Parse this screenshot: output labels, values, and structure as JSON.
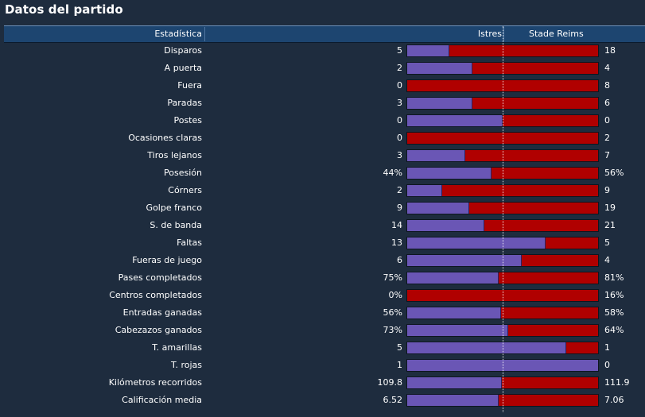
{
  "title": "Datos del partido",
  "columns": {
    "stat": "Estadística",
    "home": "Istres",
    "away": "Stade Reims"
  },
  "colors": {
    "home_bar": "#6a56b5",
    "away_bar": "#b00000",
    "header_bg": "#1d4570",
    "background": "#1e2c3e"
  },
  "rows": [
    {
      "label": "Disparos",
      "home": "5",
      "away": "18",
      "home_share": 0.22
    },
    {
      "label": "A puerta",
      "home": "2",
      "away": "4",
      "home_share": 0.34
    },
    {
      "label": "Fuera",
      "home": "0",
      "away": "8",
      "home_share": 0.0
    },
    {
      "label": "Paradas",
      "home": "3",
      "away": "6",
      "home_share": 0.34
    },
    {
      "label": "Postes",
      "home": "0",
      "away": "0",
      "home_share": 0.5
    },
    {
      "label": "Ocasiones claras",
      "home": "0",
      "away": "2",
      "home_share": 0.0
    },
    {
      "label": "Tiros lejanos",
      "home": "3",
      "away": "7",
      "home_share": 0.305
    },
    {
      "label": "Posesión",
      "home": "44%",
      "away": "56%",
      "home_share": 0.44
    },
    {
      "label": "Córners",
      "home": "2",
      "away": "9",
      "home_share": 0.185
    },
    {
      "label": "Golpe franco",
      "home": "9",
      "away": "19",
      "home_share": 0.325
    },
    {
      "label": "S. de banda",
      "home": "14",
      "away": "21",
      "home_share": 0.405
    },
    {
      "label": "Faltas",
      "home": "13",
      "away": "5",
      "home_share": 0.725
    },
    {
      "label": "Fueras de juego",
      "home": "6",
      "away": "4",
      "home_share": 0.6
    },
    {
      "label": "Pases completados",
      "home": "75%",
      "away": "81%",
      "home_share": 0.48
    },
    {
      "label": "Centros completados",
      "home": "0%",
      "away": "16%",
      "home_share": 0.0
    },
    {
      "label": "Entradas ganadas",
      "home": "56%",
      "away": "58%",
      "home_share": 0.49
    },
    {
      "label": "Cabezazos ganados",
      "home": "73%",
      "away": "64%",
      "home_share": 0.53
    },
    {
      "label": "T. amarillas",
      "home": "5",
      "away": "1",
      "home_share": 0.835
    },
    {
      "label": "T. rojas",
      "home": "1",
      "away": "0",
      "home_share": 1.0
    },
    {
      "label": "Kilómetros recorridos",
      "home": "109.8",
      "away": "111.9",
      "home_share": 0.495
    },
    {
      "label": "Calificación media",
      "home": "6.52",
      "away": "7.06",
      "home_share": 0.48
    }
  ]
}
